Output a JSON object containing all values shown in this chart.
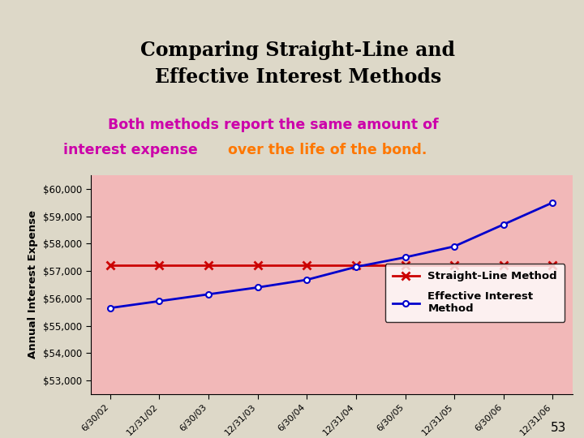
{
  "title": "Comparing Straight-Line and\nEffective Interest Methods",
  "subtitle_line1": "Both methods report the same amount of",
  "subtitle_line2_magenta": "interest expense ",
  "subtitle_line2_orange": "over the life of the bond.",
  "ylabel": "Annual Interest Expense",
  "x_labels": [
    "6/30/02",
    "12/31/02",
    "6/30/03",
    "12/31/03",
    "6/30/04",
    "12/31/04",
    "6/30/05",
    "12/31/05",
    "6/30/06",
    "12/31/06"
  ],
  "straight_line_values": [
    57200,
    57200,
    57200,
    57200,
    57200,
    57200,
    57200,
    57200,
    57200,
    57200
  ],
  "effective_interest_values": [
    55650,
    55900,
    56150,
    56400,
    56680,
    57150,
    57500,
    57900,
    58700,
    59500
  ],
  "y_ticks": [
    53000,
    54000,
    55000,
    56000,
    57000,
    58000,
    59000,
    60000
  ],
  "ylim": [
    52500,
    60500
  ],
  "straight_line_color": "#cc0000",
  "effective_interest_color": "#0000cc",
  "plot_bg_color": "#f2b8b8",
  "slide_bg_color": "#ddd8c8",
  "title_bg_color": "#f0e060",
  "subtitle_bg_color": "#f5b8cc",
  "subtitle_text_color_magenta": "#cc00aa",
  "subtitle_shadow_color": "#998899",
  "legend_label_straight": "Straight-Line Method",
  "legend_label_effective": "Effective Interest\nMethod",
  "page_num": "53"
}
